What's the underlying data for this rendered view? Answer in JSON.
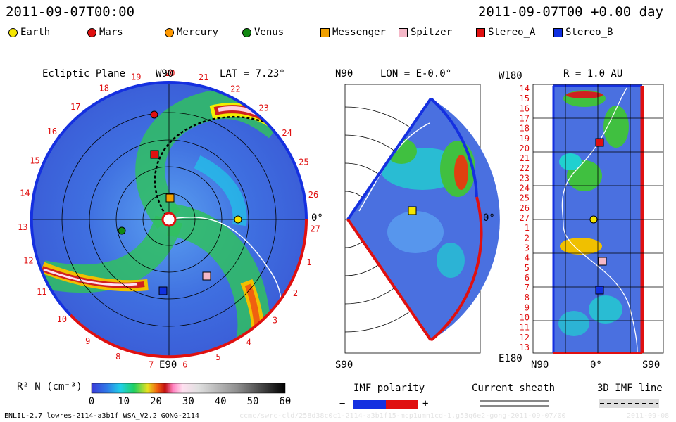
{
  "header": {
    "left_datetime": "2011-09-07T00:00",
    "right_datetime": "2011-09-07T00 +0.00 day"
  },
  "legend": [
    {
      "name": "Earth",
      "color": "#f5e600",
      "shape": "circle"
    },
    {
      "name": "Mars",
      "color": "#e01010",
      "shape": "circle"
    },
    {
      "name": "Mercury",
      "color": "#ff9900",
      "shape": "circle"
    },
    {
      "name": "Venus",
      "color": "#118811",
      "shape": "circle"
    },
    {
      "name": "Messenger",
      "color": "#f0a000",
      "shape": "square"
    },
    {
      "name": "Spitzer",
      "color": "#f5b8c8",
      "shape": "square"
    },
    {
      "name": "Stereo_A",
      "color": "#e01010",
      "shape": "square"
    },
    {
      "name": "Stereo_B",
      "color": "#1030e0",
      "shape": "square"
    }
  ],
  "panel_ecliptic": {
    "title": "Ecliptic Plane",
    "top_label": "W90",
    "lat_label": "LAT = 7.23°",
    "bottom_label": "E90",
    "right_label": "0°",
    "rotation_numbers": [
      "19",
      "20",
      "21",
      "22",
      "23",
      "24",
      "25",
      "26",
      "27",
      "1",
      "2",
      "3",
      "4",
      "5",
      "6",
      "7",
      "8",
      "9",
      "10",
      "11",
      "12",
      "13",
      "14",
      "15",
      "16",
      "17",
      "18"
    ]
  },
  "panel_meridional": {
    "top_label": "N90",
    "lon_label": "LON = E-0.0°",
    "bottom_label": "S90",
    "right_label": "0°"
  },
  "panel_radial": {
    "top_label": "W180",
    "r_label": "R = 1.0 AU",
    "bottom_label": "E180",
    "x_ticks": [
      "N90",
      "0°",
      "S90"
    ],
    "rotation_numbers": [
      "14",
      "15",
      "16",
      "17",
      "18",
      "19",
      "20",
      "21",
      "22",
      "23",
      "24",
      "25",
      "26",
      "27",
      "1",
      "2",
      "3",
      "4",
      "5",
      "6",
      "7",
      "8",
      "9",
      "10",
      "11",
      "12",
      "13"
    ]
  },
  "colorbar": {
    "label": "R² N (cm⁻³)",
    "ticks": [
      "0",
      "10",
      "20",
      "30",
      "40",
      "50",
      "60"
    ]
  },
  "imf_legend": {
    "title": "IMF polarity",
    "minus": "−",
    "plus": "+"
  },
  "current_sheath": {
    "title": "Current sheath"
  },
  "imf_line": {
    "title": "3D IMF line"
  },
  "footer": {
    "model_info": "ENLIL-2.7 lowres-2114-a3b1f WSA_V2.2 GONG-2114",
    "run_path": "ccmc/swrc-cld/258d38c0c1-2114-a3b1f15-mcp1umn1cd-1.g53q6e2-gong-2011-09-07/00",
    "date_stamp": "2011-09-08"
  }
}
